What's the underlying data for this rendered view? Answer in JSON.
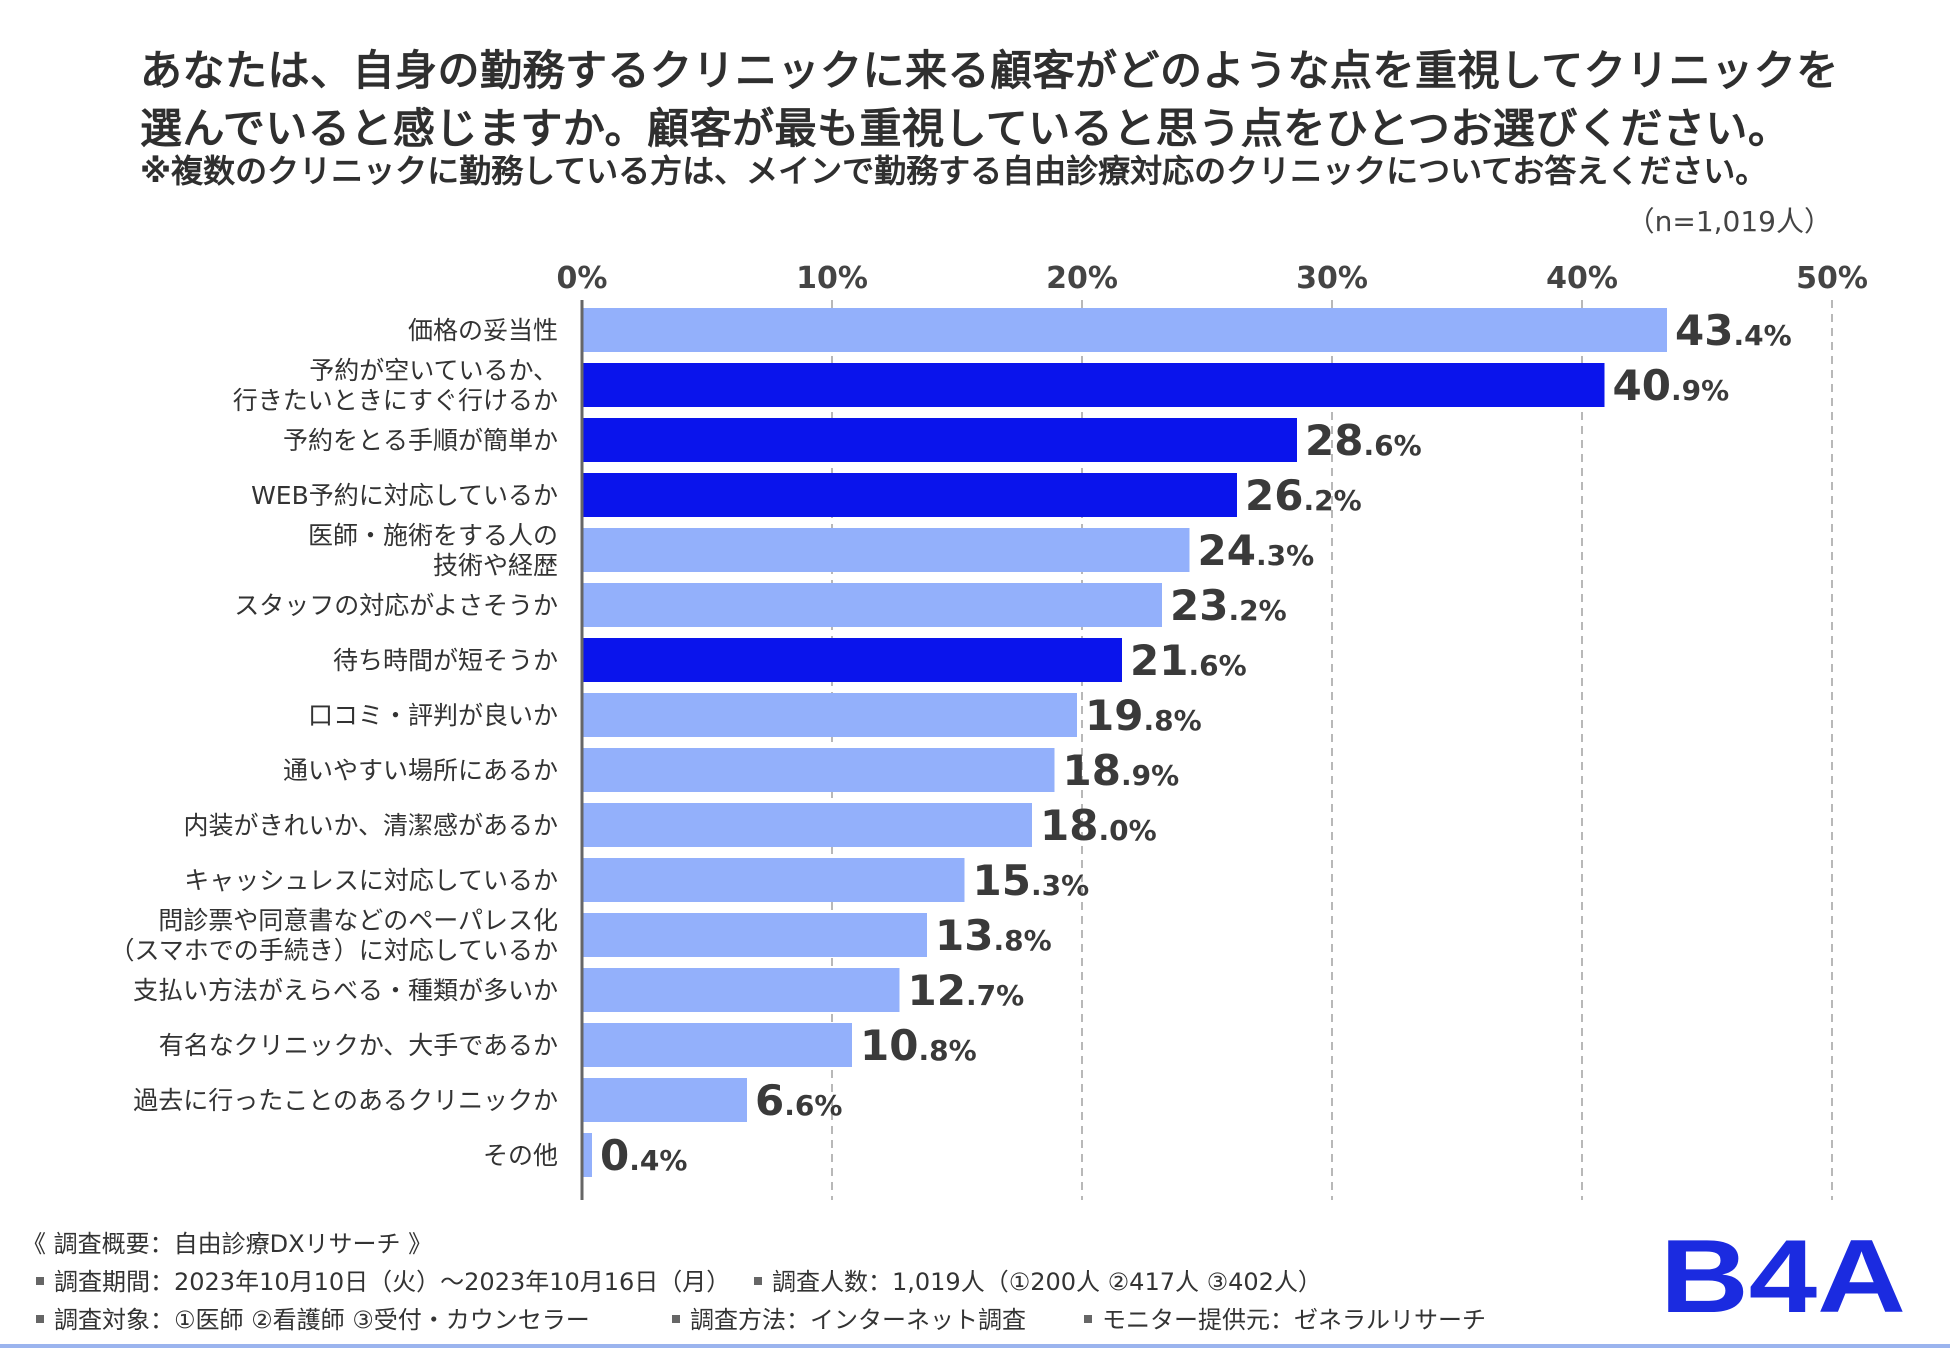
{
  "header": {
    "title_line1": "あなたは、自身の勤務するクリニックに来る顧客がどのような点を重視してクリニックを",
    "title_line2": "選んでいると感じますか。顧客が最も重視していると思う点をひとつお選びください。",
    "note": "※複数のクリニックに勤務している方は、メインで勤務する自由診療対応のクリニックについてお答えください。",
    "sample_size": "（n=1,019人）"
  },
  "colors": {
    "light": "#93b0fb",
    "dark": "#0a14ec",
    "grid": "#b8b8b8",
    "axis": "#666666"
  },
  "chart_data": {
    "type": "bar",
    "orientation": "horizontal",
    "xlim": [
      0,
      50
    ],
    "ticks": [
      0,
      10,
      20,
      30,
      40,
      50
    ],
    "tick_labels": [
      "0%",
      "10%",
      "20%",
      "30%",
      "40%",
      "50%"
    ],
    "grid": true,
    "categories": [
      [
        "価格の妥当性"
      ],
      [
        "予約が空いているか、",
        "行きたいときにすぐ行けるか"
      ],
      [
        "予約をとる手順が簡単か"
      ],
      [
        "WEB予約に対応しているか"
      ],
      [
        "医師・施術をする人の",
        "技術や経歴"
      ],
      [
        "スタッフの対応がよさそうか"
      ],
      [
        "待ち時間が短そうか"
      ],
      [
        "口コミ・評判が良いか"
      ],
      [
        "通いやすい場所にあるか"
      ],
      [
        "内装がきれいか、清潔感があるか"
      ],
      [
        "キャッシュレスに対応しているか"
      ],
      [
        "問診票や同意書などのペーパレス化",
        "（スマホでの手続き）に対応しているか"
      ],
      [
        "支払い方法がえらべる・種類が多いか"
      ],
      [
        "有名なクリニックか、大手であるか"
      ],
      [
        "過去に行ったことのあるクリニックか"
      ],
      [
        "その他"
      ]
    ],
    "values": [
      43.4,
      40.9,
      28.6,
      26.2,
      24.3,
      23.2,
      21.6,
      19.8,
      18.9,
      18.0,
      15.3,
      13.8,
      12.7,
      10.8,
      6.6,
      0.4
    ],
    "value_labels": [
      [
        "43",
        ".4%"
      ],
      [
        "40",
        ".9%"
      ],
      [
        "28",
        ".6%"
      ],
      [
        "26",
        ".2%"
      ],
      [
        "24",
        ".3%"
      ],
      [
        "23",
        ".2%"
      ],
      [
        "21",
        ".6%"
      ],
      [
        "19",
        ".8%"
      ],
      [
        "18",
        ".9%"
      ],
      [
        "18",
        ".0%"
      ],
      [
        "15",
        ".3%"
      ],
      [
        "13",
        ".8%"
      ],
      [
        "12",
        ".7%"
      ],
      [
        "10",
        ".8%"
      ],
      [
        "6",
        ".6%"
      ],
      [
        "0",
        ".4%"
      ]
    ],
    "highlighted": [
      false,
      true,
      true,
      true,
      false,
      false,
      true,
      false,
      false,
      false,
      false,
      false,
      false,
      false,
      false,
      false
    ]
  },
  "footer": {
    "heading": "《 調査概要：自由診療DXリサーチ 》",
    "period": "調査期間：2023年10月10日（火）〜2023年10月16日（月）",
    "count": "調査人数：1,019人（①200人 ②417人 ③402人）",
    "target": "調査対象：①医師 ②看護師 ③受付・カウンセラー",
    "method": "調査方法：インターネット調査",
    "provider": "モニター提供元：ゼネラルリサーチ"
  },
  "logo": {
    "text": "B4A",
    "color": "#1b2be0"
  }
}
